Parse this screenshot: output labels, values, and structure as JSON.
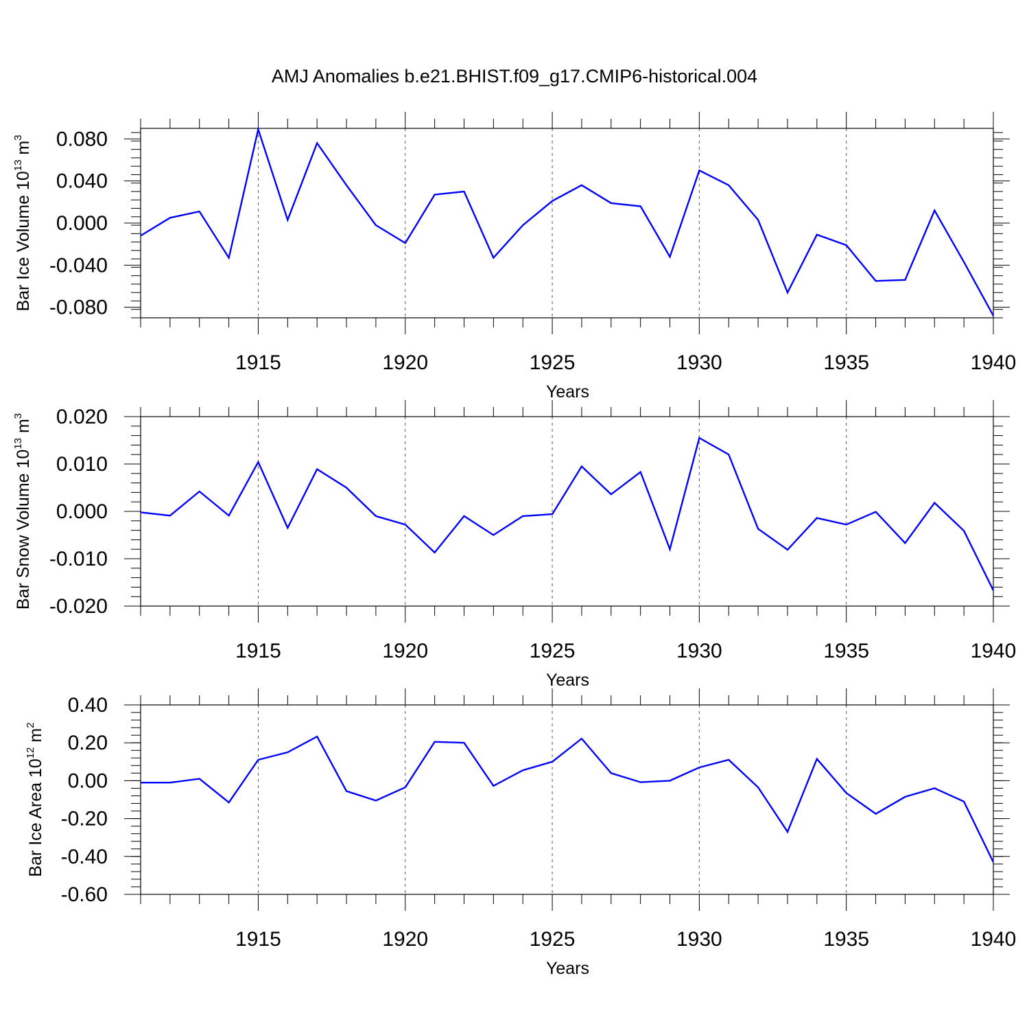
{
  "title": "AMJ Anomalies b.e21.BHIST.f09_g17.CMIP6-historical.004",
  "colors": {
    "line": "#0000ff",
    "axis": "#000000",
    "grid": "#555555"
  },
  "chart_data": [
    {
      "type": "line",
      "ylabel": {
        "text": "Bar Ice Volume 10",
        "sup": "13",
        "unit": " m",
        "unit_sup": "3"
      },
      "xlabel": "Years",
      "xlim": [
        1911,
        1940
      ],
      "ylim": [
        -0.09,
        0.09
      ],
      "yticks": [
        -0.08,
        -0.04,
        0.0,
        0.04,
        0.08
      ],
      "ytick_labels": [
        "-0.080",
        "-0.040",
        "0.000",
        "0.040",
        "0.080"
      ],
      "xticks": [
        1915,
        1920,
        1925,
        1930,
        1935,
        1940
      ],
      "xtick_labels": [
        "1915",
        "1920",
        "1925",
        "1930",
        "1935",
        "1940"
      ],
      "grid": "vertical dashed at labeled years",
      "x": [
        1911,
        1912,
        1913,
        1914,
        1915,
        1916,
        1917,
        1918,
        1919,
        1920,
        1921,
        1922,
        1923,
        1924,
        1925,
        1926,
        1927,
        1928,
        1929,
        1930,
        1931,
        1932,
        1933,
        1934,
        1935,
        1936,
        1937,
        1938,
        1939,
        1940
      ],
      "series": [
        {
          "values": [
            -0.012,
            0.005,
            0.011,
            -0.033,
            0.089,
            0.003,
            0.076,
            0.036,
            -0.002,
            -0.019,
            0.027,
            0.03,
            -0.033,
            -0.002,
            0.021,
            0.036,
            0.019,
            0.016,
            -0.032,
            0.05,
            0.036,
            0.003,
            -0.066,
            -0.011,
            -0.021,
            -0.055,
            -0.054,
            0.012,
            -0.037,
            -0.088
          ]
        }
      ]
    },
    {
      "type": "line",
      "ylabel": {
        "text": "Bar Snow Volume 10",
        "sup": "13",
        "unit": " m",
        "unit_sup": "3"
      },
      "xlabel": "Years",
      "xlim": [
        1911,
        1940
      ],
      "ylim": [
        -0.02,
        0.02
      ],
      "yticks": [
        -0.02,
        -0.01,
        0.0,
        0.01,
        0.02
      ],
      "ytick_labels": [
        "-0.020",
        "-0.010",
        "0.000",
        "0.010",
        "0.020"
      ],
      "xticks": [
        1915,
        1920,
        1925,
        1930,
        1935,
        1940
      ],
      "xtick_labels": [
        "1915",
        "1920",
        "1925",
        "1930",
        "1935",
        "1940"
      ],
      "grid": "vertical dashed at labeled years",
      "x": [
        1911,
        1912,
        1913,
        1914,
        1915,
        1916,
        1917,
        1918,
        1919,
        1920,
        1921,
        1922,
        1923,
        1924,
        1925,
        1926,
        1927,
        1928,
        1929,
        1930,
        1931,
        1932,
        1933,
        1934,
        1935,
        1936,
        1937,
        1938,
        1939,
        1940
      ],
      "series": [
        {
          "values": [
            -0.0002,
            -0.0009,
            0.0042,
            -0.0009,
            0.0104,
            -0.0035,
            0.0089,
            0.005,
            -0.001,
            -0.0028,
            -0.0087,
            -0.001,
            -0.005,
            -0.001,
            -0.0006,
            0.0095,
            0.0036,
            0.0083,
            -0.008,
            0.0155,
            0.012,
            -0.0037,
            -0.0081,
            -0.0014,
            -0.0028,
            -0.0001,
            -0.0067,
            0.0018,
            -0.0041,
            -0.0167
          ]
        }
      ]
    },
    {
      "type": "line",
      "ylabel": {
        "text": "Bar Ice Area 10",
        "sup": "12",
        "unit": " m",
        "unit_sup": "2"
      },
      "xlabel": "Years",
      "xlim": [
        1911,
        1940
      ],
      "ylim": [
        -0.6,
        0.4
      ],
      "yticks": [
        -0.6,
        -0.4,
        -0.2,
        0.0,
        0.2,
        0.4
      ],
      "ytick_labels": [
        "-0.60",
        "-0.40",
        "-0.20",
        "0.00",
        "0.20",
        "0.40"
      ],
      "xticks": [
        1915,
        1920,
        1925,
        1930,
        1935,
        1940
      ],
      "xtick_labels": [
        "1915",
        "1920",
        "1925",
        "1930",
        "1935",
        "1940"
      ],
      "grid": "vertical dashed at labeled years",
      "x": [
        1911,
        1912,
        1913,
        1914,
        1915,
        1916,
        1917,
        1918,
        1919,
        1920,
        1921,
        1922,
        1923,
        1924,
        1925,
        1926,
        1927,
        1928,
        1929,
        1930,
        1931,
        1932,
        1933,
        1934,
        1935,
        1936,
        1937,
        1938,
        1939,
        1940
      ],
      "series": [
        {
          "values": [
            -0.01,
            -0.01,
            0.01,
            -0.115,
            0.11,
            0.15,
            0.233,
            -0.055,
            -0.105,
            -0.035,
            0.205,
            0.2,
            -0.027,
            0.055,
            0.1,
            0.222,
            0.04,
            -0.008,
            0.0,
            0.07,
            0.11,
            -0.035,
            -0.27,
            0.115,
            -0.065,
            -0.175,
            -0.085,
            -0.04,
            -0.11,
            -0.43
          ]
        }
      ]
    }
  ]
}
